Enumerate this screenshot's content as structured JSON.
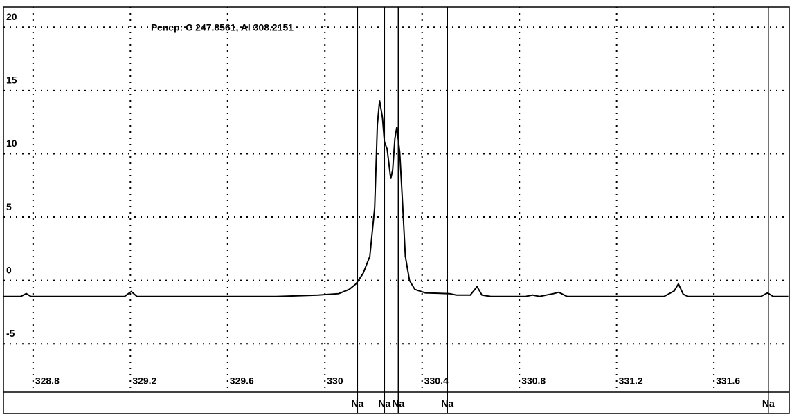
{
  "chart_data": {
    "type": "line",
    "annotation": "Репер: C  247.8561, Al  308.2151",
    "color": "#000000",
    "grid": true,
    "xlim": [
      328.678,
      331.91
    ],
    "ylim": [
      -8.7,
      21.6
    ],
    "xticks": [
      328.8,
      329.2,
      329.6,
      330,
      330.4,
      330.8,
      331.2,
      331.6
    ],
    "yticks": [
      20,
      15,
      10,
      5,
      0,
      -5
    ],
    "x": [
      328.678,
      328.749,
      328.772,
      328.791,
      329.176,
      329.204,
      329.227,
      329.801,
      329.972,
      330.057,
      330.1,
      330.128,
      330.157,
      330.185,
      330.205,
      330.216,
      330.225,
      330.237,
      330.245,
      330.256,
      330.271,
      330.279,
      330.288,
      330.296,
      330.308,
      330.319,
      330.331,
      330.348,
      330.37,
      330.413,
      330.513,
      330.541,
      330.598,
      330.626,
      330.646,
      330.683,
      330.826,
      330.854,
      330.883,
      330.911,
      330.94,
      330.962,
      330.996,
      331.395,
      331.437,
      331.454,
      331.474,
      331.494,
      331.793,
      331.821,
      331.844,
      331.906
    ],
    "values": [
      -1.26,
      -1.26,
      -1.04,
      -1.26,
      -1.26,
      -0.87,
      -1.26,
      -1.26,
      -1.15,
      -1.04,
      -0.71,
      -0.27,
      0.55,
      1.91,
      5.74,
      12.3,
      14.21,
      12.84,
      10.93,
      10.38,
      8.03,
      8.74,
      11.2,
      12.13,
      10.11,
      6.28,
      1.91,
      0,
      -0.71,
      -0.98,
      -1.04,
      -1.15,
      -1.15,
      -0.49,
      -1.15,
      -1.26,
      -1.26,
      -1.15,
      -1.26,
      -1.15,
      -1.04,
      -0.93,
      -1.26,
      -1.26,
      -0.82,
      -0.27,
      -1.09,
      -1.26,
      -1.26,
      -0.98,
      -1.26,
      -1.26
    ],
    "markers": [
      {
        "label": "Na",
        "x": 330.134
      },
      {
        "label": "Na",
        "x": 330.245
      },
      {
        "label": "Na",
        "x": 330.302
      },
      {
        "label": "Na",
        "x": 330.504
      },
      {
        "label": "Na",
        "x": 331.824
      }
    ]
  }
}
